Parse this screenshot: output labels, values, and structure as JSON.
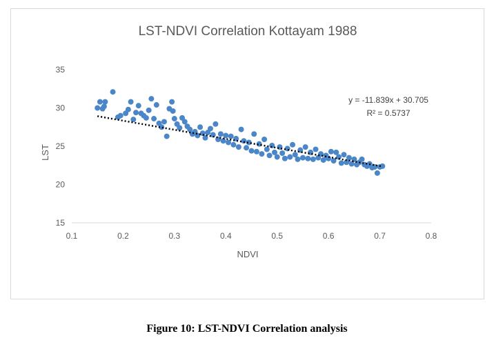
{
  "caption": "Figure 10: LST-NDVI Correlation analysis",
  "chart_data": {
    "type": "scatter",
    "title": "LST-NDVI Correlation Kottayam 1988",
    "xlabel": "NDVI",
    "ylabel": "LST",
    "xlim": [
      0.1,
      0.8
    ],
    "ylim": [
      15,
      35
    ],
    "x_ticks": [
      "0.1",
      "0.2",
      "0.3",
      "0.4",
      "0.5",
      "0.6",
      "0.7",
      "0.8"
    ],
    "y_ticks": [
      "15",
      "20",
      "25",
      "30",
      "35"
    ],
    "grid": false,
    "marker_color": "#4a86c8",
    "trendline": {
      "type": "linear",
      "slope": -11.839,
      "intercept": 30.705,
      "equation": "y = -11.839x + 30.705",
      "r_squared": "R² = 0.5737",
      "color": "#000000"
    },
    "series": [
      {
        "points": [
          [
            0.15,
            30.0
          ],
          [
            0.155,
            30.8
          ],
          [
            0.16,
            29.9
          ],
          [
            0.163,
            30.2
          ],
          [
            0.165,
            30.8
          ],
          [
            0.18,
            32.1
          ],
          [
            0.19,
            28.8
          ],
          [
            0.195,
            29.0
          ],
          [
            0.205,
            29.3
          ],
          [
            0.21,
            29.8
          ],
          [
            0.215,
            30.8
          ],
          [
            0.22,
            28.5
          ],
          [
            0.225,
            29.4
          ],
          [
            0.23,
            30.3
          ],
          [
            0.235,
            29.3
          ],
          [
            0.24,
            29.0
          ],
          [
            0.245,
            28.7
          ],
          [
            0.25,
            29.7
          ],
          [
            0.255,
            31.2
          ],
          [
            0.26,
            28.6
          ],
          [
            0.265,
            30.4
          ],
          [
            0.27,
            28.0
          ],
          [
            0.275,
            27.5
          ],
          [
            0.28,
            28.2
          ],
          [
            0.285,
            26.3
          ],
          [
            0.29,
            29.9
          ],
          [
            0.295,
            30.8
          ],
          [
            0.297,
            29.6
          ],
          [
            0.3,
            28.6
          ],
          [
            0.305,
            27.9
          ],
          [
            0.31,
            27.4
          ],
          [
            0.315,
            28.7
          ],
          [
            0.32,
            28.2
          ],
          [
            0.325,
            27.6
          ],
          [
            0.33,
            27.2
          ],
          [
            0.335,
            26.6
          ],
          [
            0.34,
            26.9
          ],
          [
            0.345,
            26.4
          ],
          [
            0.35,
            27.5
          ],
          [
            0.355,
            26.7
          ],
          [
            0.36,
            26.1
          ],
          [
            0.365,
            26.8
          ],
          [
            0.37,
            27.3
          ],
          [
            0.375,
            26.5
          ],
          [
            0.38,
            27.9
          ],
          [
            0.385,
            25.9
          ],
          [
            0.39,
            26.6
          ],
          [
            0.395,
            25.7
          ],
          [
            0.4,
            26.4
          ],
          [
            0.405,
            25.5
          ],
          [
            0.41,
            26.3
          ],
          [
            0.415,
            25.2
          ],
          [
            0.42,
            26.0
          ],
          [
            0.425,
            24.9
          ],
          [
            0.43,
            27.2
          ],
          [
            0.435,
            25.7
          ],
          [
            0.44,
            24.8
          ],
          [
            0.445,
            25.5
          ],
          [
            0.45,
            24.4
          ],
          [
            0.455,
            26.6
          ],
          [
            0.46,
            24.3
          ],
          [
            0.465,
            25.3
          ],
          [
            0.47,
            24.0
          ],
          [
            0.475,
            25.9
          ],
          [
            0.48,
            24.6
          ],
          [
            0.485,
            23.8
          ],
          [
            0.49,
            25.1
          ],
          [
            0.495,
            24.2
          ],
          [
            0.5,
            23.6
          ],
          [
            0.505,
            24.9
          ],
          [
            0.51,
            24.1
          ],
          [
            0.515,
            23.4
          ],
          [
            0.52,
            24.7
          ],
          [
            0.525,
            23.6
          ],
          [
            0.53,
            25.2
          ],
          [
            0.535,
            23.9
          ],
          [
            0.54,
            23.3
          ],
          [
            0.545,
            24.5
          ],
          [
            0.55,
            23.5
          ],
          [
            0.555,
            24.9
          ],
          [
            0.56,
            23.4
          ],
          [
            0.565,
            24.2
          ],
          [
            0.57,
            23.3
          ],
          [
            0.575,
            24.6
          ],
          [
            0.58,
            23.5
          ],
          [
            0.585,
            24.0
          ],
          [
            0.59,
            23.2
          ],
          [
            0.595,
            23.8
          ],
          [
            0.6,
            23.4
          ],
          [
            0.605,
            24.3
          ],
          [
            0.61,
            23.1
          ],
          [
            0.615,
            24.2
          ],
          [
            0.62,
            23.6
          ],
          [
            0.625,
            22.8
          ],
          [
            0.63,
            23.9
          ],
          [
            0.635,
            22.9
          ],
          [
            0.64,
            23.5
          ],
          [
            0.645,
            22.7
          ],
          [
            0.65,
            23.3
          ],
          [
            0.655,
            22.6
          ],
          [
            0.66,
            22.9
          ],
          [
            0.665,
            23.3
          ],
          [
            0.67,
            22.6
          ],
          [
            0.675,
            22.4
          ],
          [
            0.68,
            22.7
          ],
          [
            0.685,
            22.2
          ],
          [
            0.69,
            22.3
          ],
          [
            0.695,
            21.5
          ],
          [
            0.7,
            22.3
          ],
          [
            0.705,
            22.4
          ]
        ]
      }
    ]
  }
}
